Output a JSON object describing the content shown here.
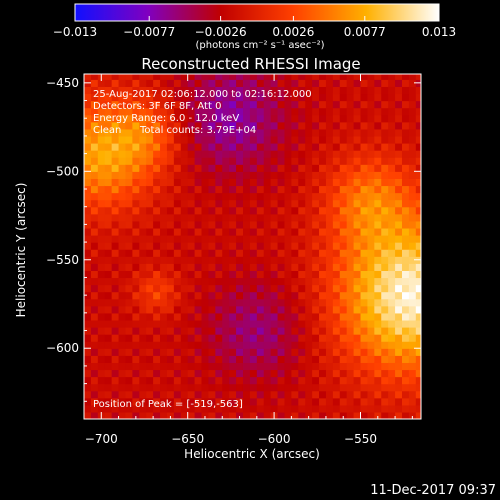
{
  "chart_data": {
    "type": "heatmap",
    "title": "Reconstructed RHESSI Image",
    "xlabel": "Heliocentric X (arcsec)",
    "ylabel": "Heliocentric Y (arcsec)",
    "xlim": [
      -710,
      -515
    ],
    "ylim": [
      -640,
      -445
    ],
    "x_ticks": [
      -700,
      -650,
      -600,
      -550
    ],
    "y_ticks": [
      -450,
      -500,
      -550,
      -600
    ],
    "x_tick_labels": [
      "−700",
      "−650",
      "−600",
      "−550"
    ],
    "y_tick_labels": [
      "−450",
      "−500",
      "−550",
      "−600"
    ],
    "colorbar": {
      "range": [
        -0.013,
        0.013
      ],
      "ticks": [
        -0.013,
        -0.0077,
        -0.0026,
        0.0026,
        0.0077,
        0.013
      ],
      "tick_labels": [
        "−0.013",
        "−0.0077",
        "−0.0026",
        "0.0026",
        "0.0077",
        "0.013"
      ],
      "unit_label": "(photons cm⁻² s⁻¹ asec⁻²)",
      "colors": [
        "#1010ff",
        "#8000c0",
        "#c00000",
        "#ff4000",
        "#ffb000",
        "#ffffff"
      ]
    },
    "annotations": {
      "time_range": "25-Aug-2017 02:06:12.000 to 02:16:12.000",
      "detectors": "Detectors: 3F 6F 8F, Att 0",
      "energy_range": "Energy Range: 6.0 - 12.0 keV",
      "method": "Clean",
      "total_counts": "Total counts: 3.79E+04",
      "peak_position": "Position of Peak = [-519,-563]"
    },
    "peak": {
      "x": -519,
      "y": -563
    },
    "sources": [
      {
        "x": -520,
        "y": -570,
        "sigma": 30,
        "amp": 0.014
      },
      {
        "x": -545,
        "y": -515,
        "sigma": 18,
        "amp": 0.006
      },
      {
        "x": -700,
        "y": -490,
        "sigma": 22,
        "amp": 0.009
      },
      {
        "x": -672,
        "y": -478,
        "sigma": 14,
        "amp": 0.004
      },
      {
        "x": -668,
        "y": -568,
        "sigma": 9,
        "amp": 0.004
      },
      {
        "x": -625,
        "y": -470,
        "sigma": 22,
        "amp": -0.005
      },
      {
        "x": -610,
        "y": -590,
        "sigma": 20,
        "amp": -0.004
      }
    ]
  },
  "footer": {
    "date": "11-Dec-2017 09:37"
  }
}
